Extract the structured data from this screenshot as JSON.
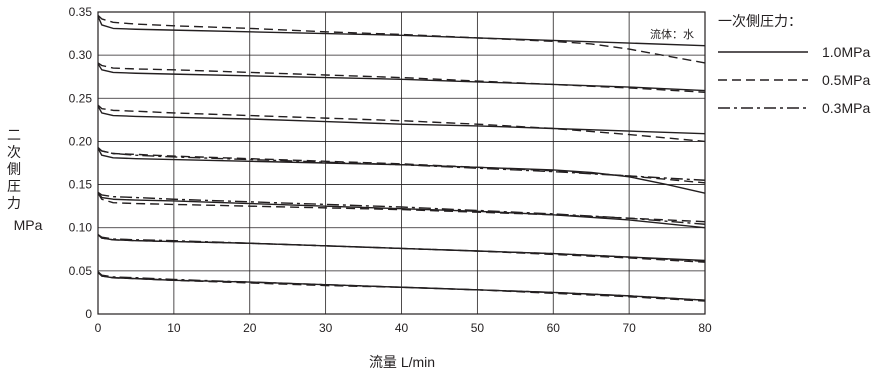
{
  "chart_data": {
    "type": "line",
    "xlabel": "流量  L/min",
    "ylabel_chars": [
      "二",
      "次",
      "側",
      "圧",
      "力"
    ],
    "ylabel_unit": "MPa",
    "xlim": [
      0,
      80
    ],
    "ylim": [
      0,
      0.35
    ],
    "x_ticks": [
      "0",
      "10",
      "20",
      "30",
      "40",
      "50",
      "60",
      "70",
      "80"
    ],
    "y_ticks": [
      "0",
      "0.05",
      "0.10",
      "0.15",
      "0.20",
      "0.25",
      "0.30",
      "0.35"
    ],
    "grid": true,
    "note": "流体：水",
    "legend": {
      "title": "一次側圧力：",
      "position": "right",
      "entries": [
        {
          "label": "1.0MPa",
          "style": "solid"
        },
        {
          "label": "0.5MPa",
          "style": "dashed"
        },
        {
          "label": "0.3MPa",
          "style": "dashdot"
        }
      ]
    },
    "series": [
      {
        "style": "solid",
        "x": [
          0,
          0.5,
          2,
          5,
          10,
          20,
          30,
          40,
          50,
          60,
          70,
          80
        ],
        "y": [
          0.345,
          0.335,
          0.331,
          0.33,
          0.329,
          0.327,
          0.325,
          0.323,
          0.32,
          0.317,
          0.314,
          0.311
        ]
      },
      {
        "style": "dashed",
        "x": [
          0,
          0.5,
          2,
          5,
          10,
          20,
          30,
          40,
          50,
          60,
          65,
          70,
          75,
          80
        ],
        "y": [
          0.346,
          0.342,
          0.338,
          0.336,
          0.334,
          0.331,
          0.327,
          0.324,
          0.32,
          0.316,
          0.313,
          0.307,
          0.299,
          0.291
        ]
      },
      {
        "style": "solid",
        "x": [
          0,
          0.5,
          2,
          5,
          10,
          20,
          30,
          40,
          50,
          60,
          70,
          80
        ],
        "y": [
          0.29,
          0.283,
          0.28,
          0.279,
          0.278,
          0.276,
          0.274,
          0.272,
          0.269,
          0.266,
          0.263,
          0.259
        ]
      },
      {
        "style": "dashed",
        "x": [
          0,
          0.5,
          2,
          5,
          10,
          20,
          30,
          40,
          50,
          60,
          70,
          80
        ],
        "y": [
          0.291,
          0.288,
          0.285,
          0.284,
          0.283,
          0.28,
          0.277,
          0.274,
          0.27,
          0.266,
          0.262,
          0.257
        ]
      },
      {
        "style": "solid",
        "x": [
          0,
          0.5,
          2,
          5,
          10,
          20,
          30,
          40,
          50,
          60,
          70,
          80
        ],
        "y": [
          0.241,
          0.233,
          0.23,
          0.229,
          0.228,
          0.226,
          0.223,
          0.22,
          0.218,
          0.215,
          0.212,
          0.209
        ]
      },
      {
        "style": "dashed",
        "x": [
          0,
          0.5,
          2,
          5,
          10,
          20,
          30,
          40,
          50,
          60,
          70,
          80
        ],
        "y": [
          0.242,
          0.238,
          0.236,
          0.235,
          0.233,
          0.23,
          0.227,
          0.224,
          0.22,
          0.215,
          0.208,
          0.2
        ]
      },
      {
        "style": "solid",
        "x": [
          0,
          0.5,
          2,
          5,
          10,
          20,
          30,
          40,
          50,
          60,
          65,
          70,
          75,
          80
        ],
        "y": [
          0.192,
          0.184,
          0.181,
          0.18,
          0.179,
          0.177,
          0.175,
          0.173,
          0.17,
          0.167,
          0.164,
          0.159,
          0.15,
          0.14
        ]
      },
      {
        "style": "dashed",
        "x": [
          0,
          0.5,
          2,
          5,
          10,
          20,
          30,
          40,
          50,
          60,
          70,
          80
        ],
        "y": [
          0.192,
          0.189,
          0.186,
          0.185,
          0.183,
          0.18,
          0.177,
          0.174,
          0.17,
          0.166,
          0.16,
          0.152
        ]
      },
      {
        "style": "dashdot",
        "x": [
          0,
          0.5,
          2,
          5,
          10,
          20,
          30,
          40,
          50,
          60,
          70,
          80
        ],
        "y": [
          0.193,
          0.189,
          0.186,
          0.184,
          0.182,
          0.179,
          0.176,
          0.173,
          0.169,
          0.165,
          0.16,
          0.155
        ]
      },
      {
        "style": "solid",
        "x": [
          0,
          0.5,
          2,
          5,
          10,
          20,
          30,
          40,
          50,
          60,
          70,
          80
        ],
        "y": [
          0.141,
          0.135,
          0.133,
          0.132,
          0.131,
          0.128,
          0.125,
          0.122,
          0.119,
          0.115,
          0.109,
          0.1
        ]
      },
      {
        "style": "dashed",
        "x": [
          0,
          0.5,
          2,
          5,
          10,
          20,
          30,
          40,
          50,
          60,
          70,
          80
        ],
        "y": [
          0.14,
          0.133,
          0.129,
          0.128,
          0.127,
          0.125,
          0.123,
          0.121,
          0.118,
          0.115,
          0.111,
          0.107
        ]
      },
      {
        "style": "dashdot",
        "x": [
          0,
          0.5,
          2,
          5,
          10,
          20,
          30,
          40,
          50,
          60,
          70,
          80
        ],
        "y": [
          0.141,
          0.138,
          0.136,
          0.135,
          0.133,
          0.13,
          0.127,
          0.124,
          0.12,
          0.116,
          0.111,
          0.104
        ]
      },
      {
        "style": "solid",
        "x": [
          0,
          0.5,
          2,
          5,
          10,
          20,
          30,
          40,
          50,
          60,
          70,
          80
        ],
        "y": [
          0.092,
          0.088,
          0.086,
          0.085,
          0.084,
          0.082,
          0.079,
          0.076,
          0.073,
          0.07,
          0.066,
          0.062
        ]
      },
      {
        "style": "dashed",
        "x": [
          0,
          0.5,
          2,
          5,
          10,
          20,
          30,
          40,
          50,
          60,
          70,
          80
        ],
        "y": [
          0.092,
          0.088,
          0.086,
          0.085,
          0.084,
          0.082,
          0.079,
          0.076,
          0.073,
          0.069,
          0.065,
          0.06
        ]
      },
      {
        "style": "dashdot",
        "x": [
          0,
          0.5,
          2,
          5,
          10,
          20,
          30,
          40,
          50,
          60,
          70,
          80
        ],
        "y": [
          0.092,
          0.089,
          0.087,
          0.086,
          0.085,
          0.082,
          0.079,
          0.076,
          0.073,
          0.07,
          0.066,
          0.061
        ]
      },
      {
        "style": "solid",
        "x": [
          0,
          0.5,
          2,
          5,
          10,
          20,
          30,
          40,
          50,
          60,
          70,
          80
        ],
        "y": [
          0.049,
          0.044,
          0.042,
          0.041,
          0.039,
          0.037,
          0.034,
          0.031,
          0.028,
          0.025,
          0.021,
          0.016
        ]
      },
      {
        "style": "dashed",
        "x": [
          0,
          0.5,
          2,
          5,
          10,
          20,
          30,
          40,
          50,
          60,
          70,
          80
        ],
        "y": [
          0.048,
          0.044,
          0.042,
          0.041,
          0.039,
          0.036,
          0.033,
          0.031,
          0.028,
          0.024,
          0.02,
          0.015
        ]
      },
      {
        "style": "dashdot",
        "x": [
          0,
          0.5,
          2,
          5,
          10,
          20,
          30,
          40,
          50,
          60,
          70,
          80
        ],
        "y": [
          0.049,
          0.045,
          0.043,
          0.042,
          0.04,
          0.037,
          0.034,
          0.031,
          0.028,
          0.025,
          0.021,
          0.016
        ]
      }
    ]
  }
}
